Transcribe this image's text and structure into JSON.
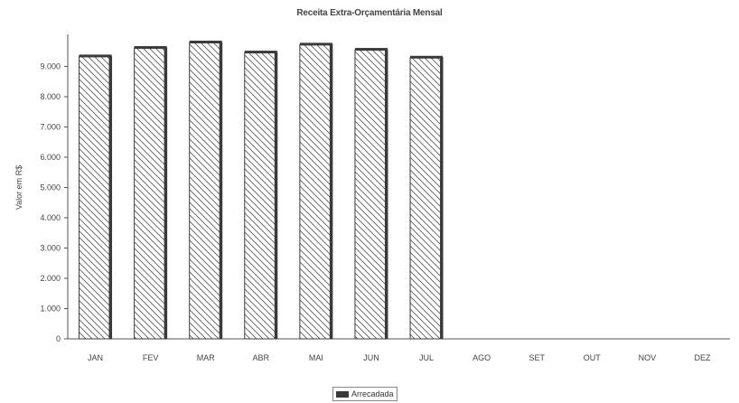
{
  "chart_data": {
    "type": "bar",
    "title": "Receita Extra-Orçamentária Mensal",
    "xlabel": "",
    "ylabel": "Valor em R$",
    "categories": [
      "JAN",
      "FEV",
      "MAR",
      "ABR",
      "MAI",
      "JUN",
      "JUL",
      "AGO",
      "SET",
      "OUT",
      "NOV",
      "DEZ"
    ],
    "series": [
      {
        "name": "Arrecadada",
        "values": [
          9330,
          9610,
          9790,
          9460,
          9720,
          9550,
          9290,
          0,
          0,
          0,
          0,
          0
        ]
      }
    ],
    "ylim": [
      0,
      10000
    ],
    "yticks": [
      0,
      1000,
      2000,
      3000,
      4000,
      5000,
      6000,
      7000,
      8000,
      9000
    ],
    "ytick_labels": [
      "0",
      "1.000",
      "2.000",
      "3.000",
      "4.000",
      "5.000",
      "6.000",
      "7.000",
      "8.000",
      "9.000"
    ],
    "grid": false,
    "legend_position": "bottom-center",
    "bar_fill": "diagonal-hatch",
    "colors": {
      "bar_edge": "#3a3a3a",
      "hatch": "#555555",
      "axis": "#555555",
      "legend_swatch": "#3a3a3a"
    }
  }
}
